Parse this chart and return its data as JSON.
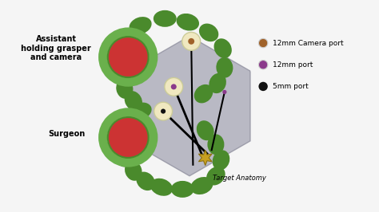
{
  "bg_color": "#f5f5f5",
  "hexagon_color": "#a0a0b0",
  "hexagon_alpha": 0.7,
  "green_color": "#6ab04c",
  "green_dark": "#4a8a2c",
  "red_color": "#cc3333",
  "port_cream": "#f0e8c0",
  "port_brown": "#a0622a",
  "port_purple": "#8b3a8b",
  "port_dark": "#111111",
  "star_color": "#c8a020",
  "legend_items": [
    {
      "label": "12mm Camera port",
      "color": "#a0622a"
    },
    {
      "label": "12mm port",
      "color": "#8b3a8b"
    },
    {
      "label": "5mm port",
      "color": "#111111"
    }
  ],
  "label_assistant": "Assistant\nholding grasper\nand camera",
  "label_surgeon": "Surgeon",
  "label_anatomy": "Target Anatomy",
  "upper_segments": [
    [
      3.6,
      5.3,
      0.62,
      0.44,
      20
    ],
    [
      4.3,
      5.5,
      0.62,
      0.44,
      0
    ],
    [
      4.95,
      5.4,
      0.62,
      0.44,
      -15
    ],
    [
      5.55,
      5.1,
      0.55,
      0.44,
      -35
    ],
    [
      5.95,
      4.65,
      0.55,
      0.44,
      -60
    ],
    [
      6.0,
      4.1,
      0.55,
      0.44,
      -85
    ],
    [
      5.8,
      3.65,
      0.55,
      0.44,
      -110
    ],
    [
      5.4,
      3.35,
      0.55,
      0.44,
      -135
    ],
    [
      3.1,
      4.95,
      0.55,
      0.44,
      45
    ],
    [
      2.9,
      4.45,
      0.55,
      0.44,
      70
    ],
    [
      3.0,
      3.95,
      0.55,
      0.44,
      85
    ],
    [
      3.15,
      3.5,
      0.55,
      0.44,
      100
    ],
    [
      3.4,
      3.15,
      0.55,
      0.44,
      120
    ]
  ],
  "lower_segments": [
    [
      3.6,
      2.85,
      0.62,
      0.44,
      20
    ],
    [
      3.3,
      2.45,
      0.55,
      0.44,
      50
    ],
    [
      3.1,
      2.0,
      0.55,
      0.44,
      75
    ],
    [
      3.15,
      1.55,
      0.55,
      0.44,
      85
    ],
    [
      3.4,
      1.15,
      0.55,
      0.44,
      110
    ],
    [
      3.75,
      0.85,
      0.55,
      0.44,
      135
    ],
    [
      4.2,
      0.68,
      0.62,
      0.44,
      160
    ],
    [
      4.8,
      0.62,
      0.62,
      0.44,
      180
    ],
    [
      5.35,
      0.72,
      0.62,
      0.44,
      -160
    ],
    [
      5.75,
      1.0,
      0.55,
      0.44,
      -135
    ],
    [
      5.9,
      1.45,
      0.55,
      0.44,
      -110
    ],
    [
      5.75,
      1.9,
      0.55,
      0.44,
      -90
    ],
    [
      5.45,
      2.3,
      0.55,
      0.44,
      -65
    ]
  ]
}
